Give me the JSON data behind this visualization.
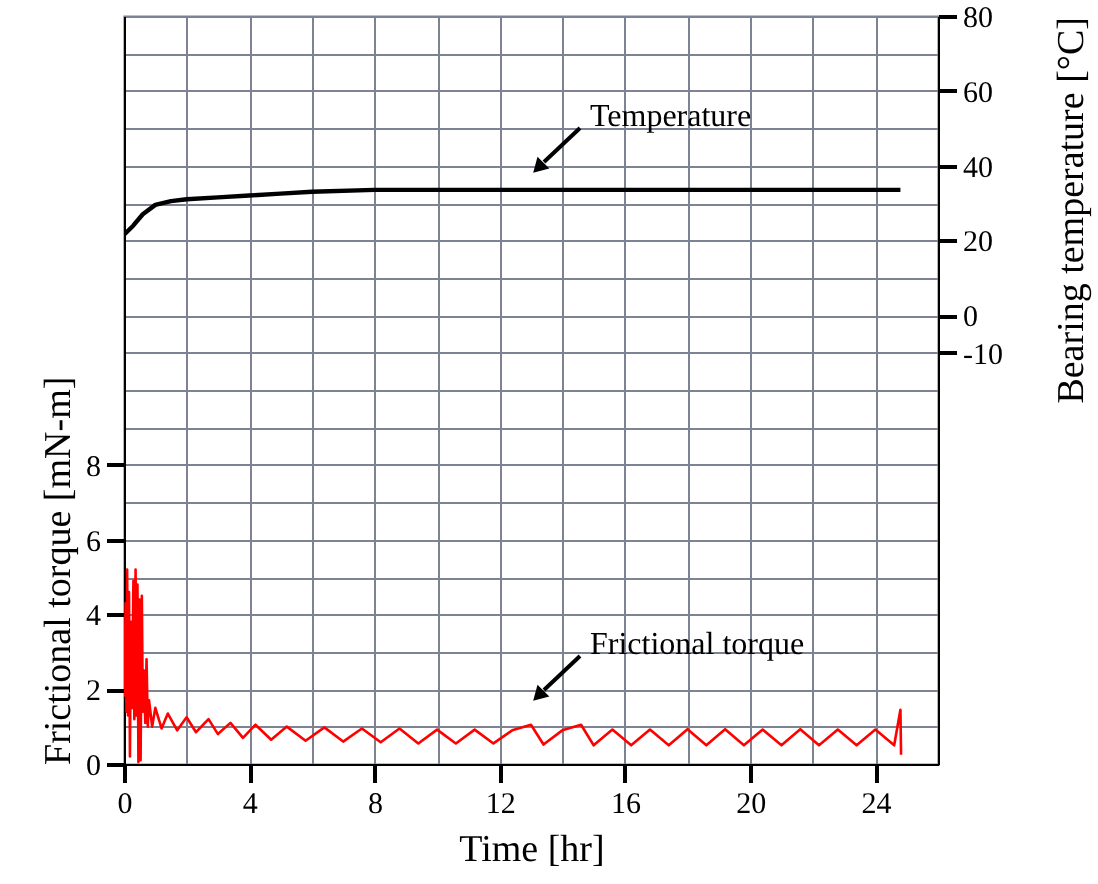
{
  "chart_data": {
    "type": "line",
    "xlabel": "Time [hr]",
    "ylabel": "Frictional torque [mN-m]",
    "y2label": "Bearing temperature [°C]",
    "xlim": [
      0,
      26
    ],
    "xticks": [
      0,
      {
        "value": 2,
        "label": null
      },
      4,
      {
        "value": 6,
        "label": null
      },
      8,
      {
        "value": 10,
        "label": null
      },
      12,
      {
        "value": 14,
        "label": null
      },
      16,
      {
        "value": 18,
        "label": null
      },
      20,
      {
        "value": 22,
        "label": null
      },
      24,
      {
        "value": 26,
        "label": null
      }
    ],
    "ylim": [
      0,
      20
    ],
    "yticks": [
      0,
      {
        "value": 1,
        "label": null
      },
      2,
      {
        "value": 3,
        "label": null
      },
      4,
      {
        "value": 5,
        "label": null
      },
      6,
      {
        "value": 7,
        "label": null
      },
      8,
      {
        "value": 9,
        "label": null
      },
      {
        "value": 10,
        "label": null
      },
      {
        "value": 11,
        "label": null
      },
      {
        "value": 12,
        "label": null
      },
      {
        "value": 13,
        "label": null
      },
      {
        "value": 14,
        "label": null
      },
      {
        "value": 15,
        "label": null
      },
      {
        "value": 16,
        "label": null
      },
      {
        "value": 17,
        "label": null
      },
      {
        "value": 18,
        "label": null
      },
      {
        "value": 19,
        "label": null
      },
      {
        "value": 20,
        "label": null
      }
    ],
    "y2lim": [
      -120,
      80
    ],
    "y2ticks": [
      -10,
      0,
      20,
      40,
      60,
      80
    ],
    "grid": true,
    "line_style": "solid",
    "marker": "none",
    "series": [
      {
        "name": "Temperature",
        "color": "#000000",
        "axis": "y2",
        "x": [
          0,
          0.3,
          0.6,
          1,
          1.5,
          2,
          3,
          4,
          5,
          6,
          8,
          10,
          14,
          18,
          22,
          24.8
        ],
        "values": [
          21.5,
          24,
          27,
          29.5,
          30.5,
          31,
          31.5,
          32,
          32.5,
          33,
          33.5,
          33.5,
          33.5,
          33.5,
          33.5,
          33.5
        ]
      },
      {
        "name": "Frictional torque",
        "color": "#ff0000",
        "x": [
          0.02,
          0.05,
          0.08,
          0.1,
          0.13,
          0.16,
          0.19,
          0.22,
          0.26,
          0.3,
          0.33,
          0.37,
          0.4,
          0.43,
          0.46,
          0.5,
          0.53,
          0.57,
          0.6,
          0.64,
          0.68,
          0.72,
          0.76,
          0.8,
          0.9,
          1.0,
          1.2,
          1.4,
          1.7,
          2.0,
          2.3,
          2.7,
          3.0,
          3.4,
          3.8,
          4.2,
          4.7,
          5.2,
          5.8,
          6.4,
          7,
          7.6,
          8.2,
          8.8,
          9.4,
          10,
          10.6,
          11.2,
          11.8,
          12.4,
          13,
          13.4,
          14,
          14.6,
          15,
          15.6,
          16.2,
          16.8,
          17.4,
          18,
          18.6,
          19.2,
          19.8,
          20.4,
          21,
          21.6,
          22.2,
          22.8,
          23.4,
          24,
          24.6,
          24.8,
          24.82
        ],
        "values": [
          1.8,
          4.3,
          1.4,
          5.2,
          1.3,
          4.6,
          0.2,
          3.8,
          1.5,
          4.9,
          1.2,
          5.2,
          1.3,
          4.8,
          0.05,
          4.4,
          0.1,
          4.5,
          1.4,
          2.5,
          1.1,
          2.8,
          1.0,
          1.7,
          1.0,
          1.5,
          0.95,
          1.35,
          0.9,
          1.25,
          0.85,
          1.2,
          0.8,
          1.1,
          0.7,
          1.05,
          0.65,
          1.0,
          0.62,
          0.98,
          0.6,
          0.95,
          0.58,
          0.95,
          0.55,
          0.92,
          0.55,
          0.92,
          0.55,
          0.9,
          1.05,
          0.52,
          0.9,
          1.05,
          0.5,
          0.92,
          0.5,
          0.92,
          0.5,
          0.93,
          0.5,
          0.93,
          0.5,
          0.92,
          0.5,
          0.93,
          0.5,
          0.92,
          0.5,
          0.92,
          0.5,
          1.45,
          0.25
        ]
      }
    ]
  }
}
